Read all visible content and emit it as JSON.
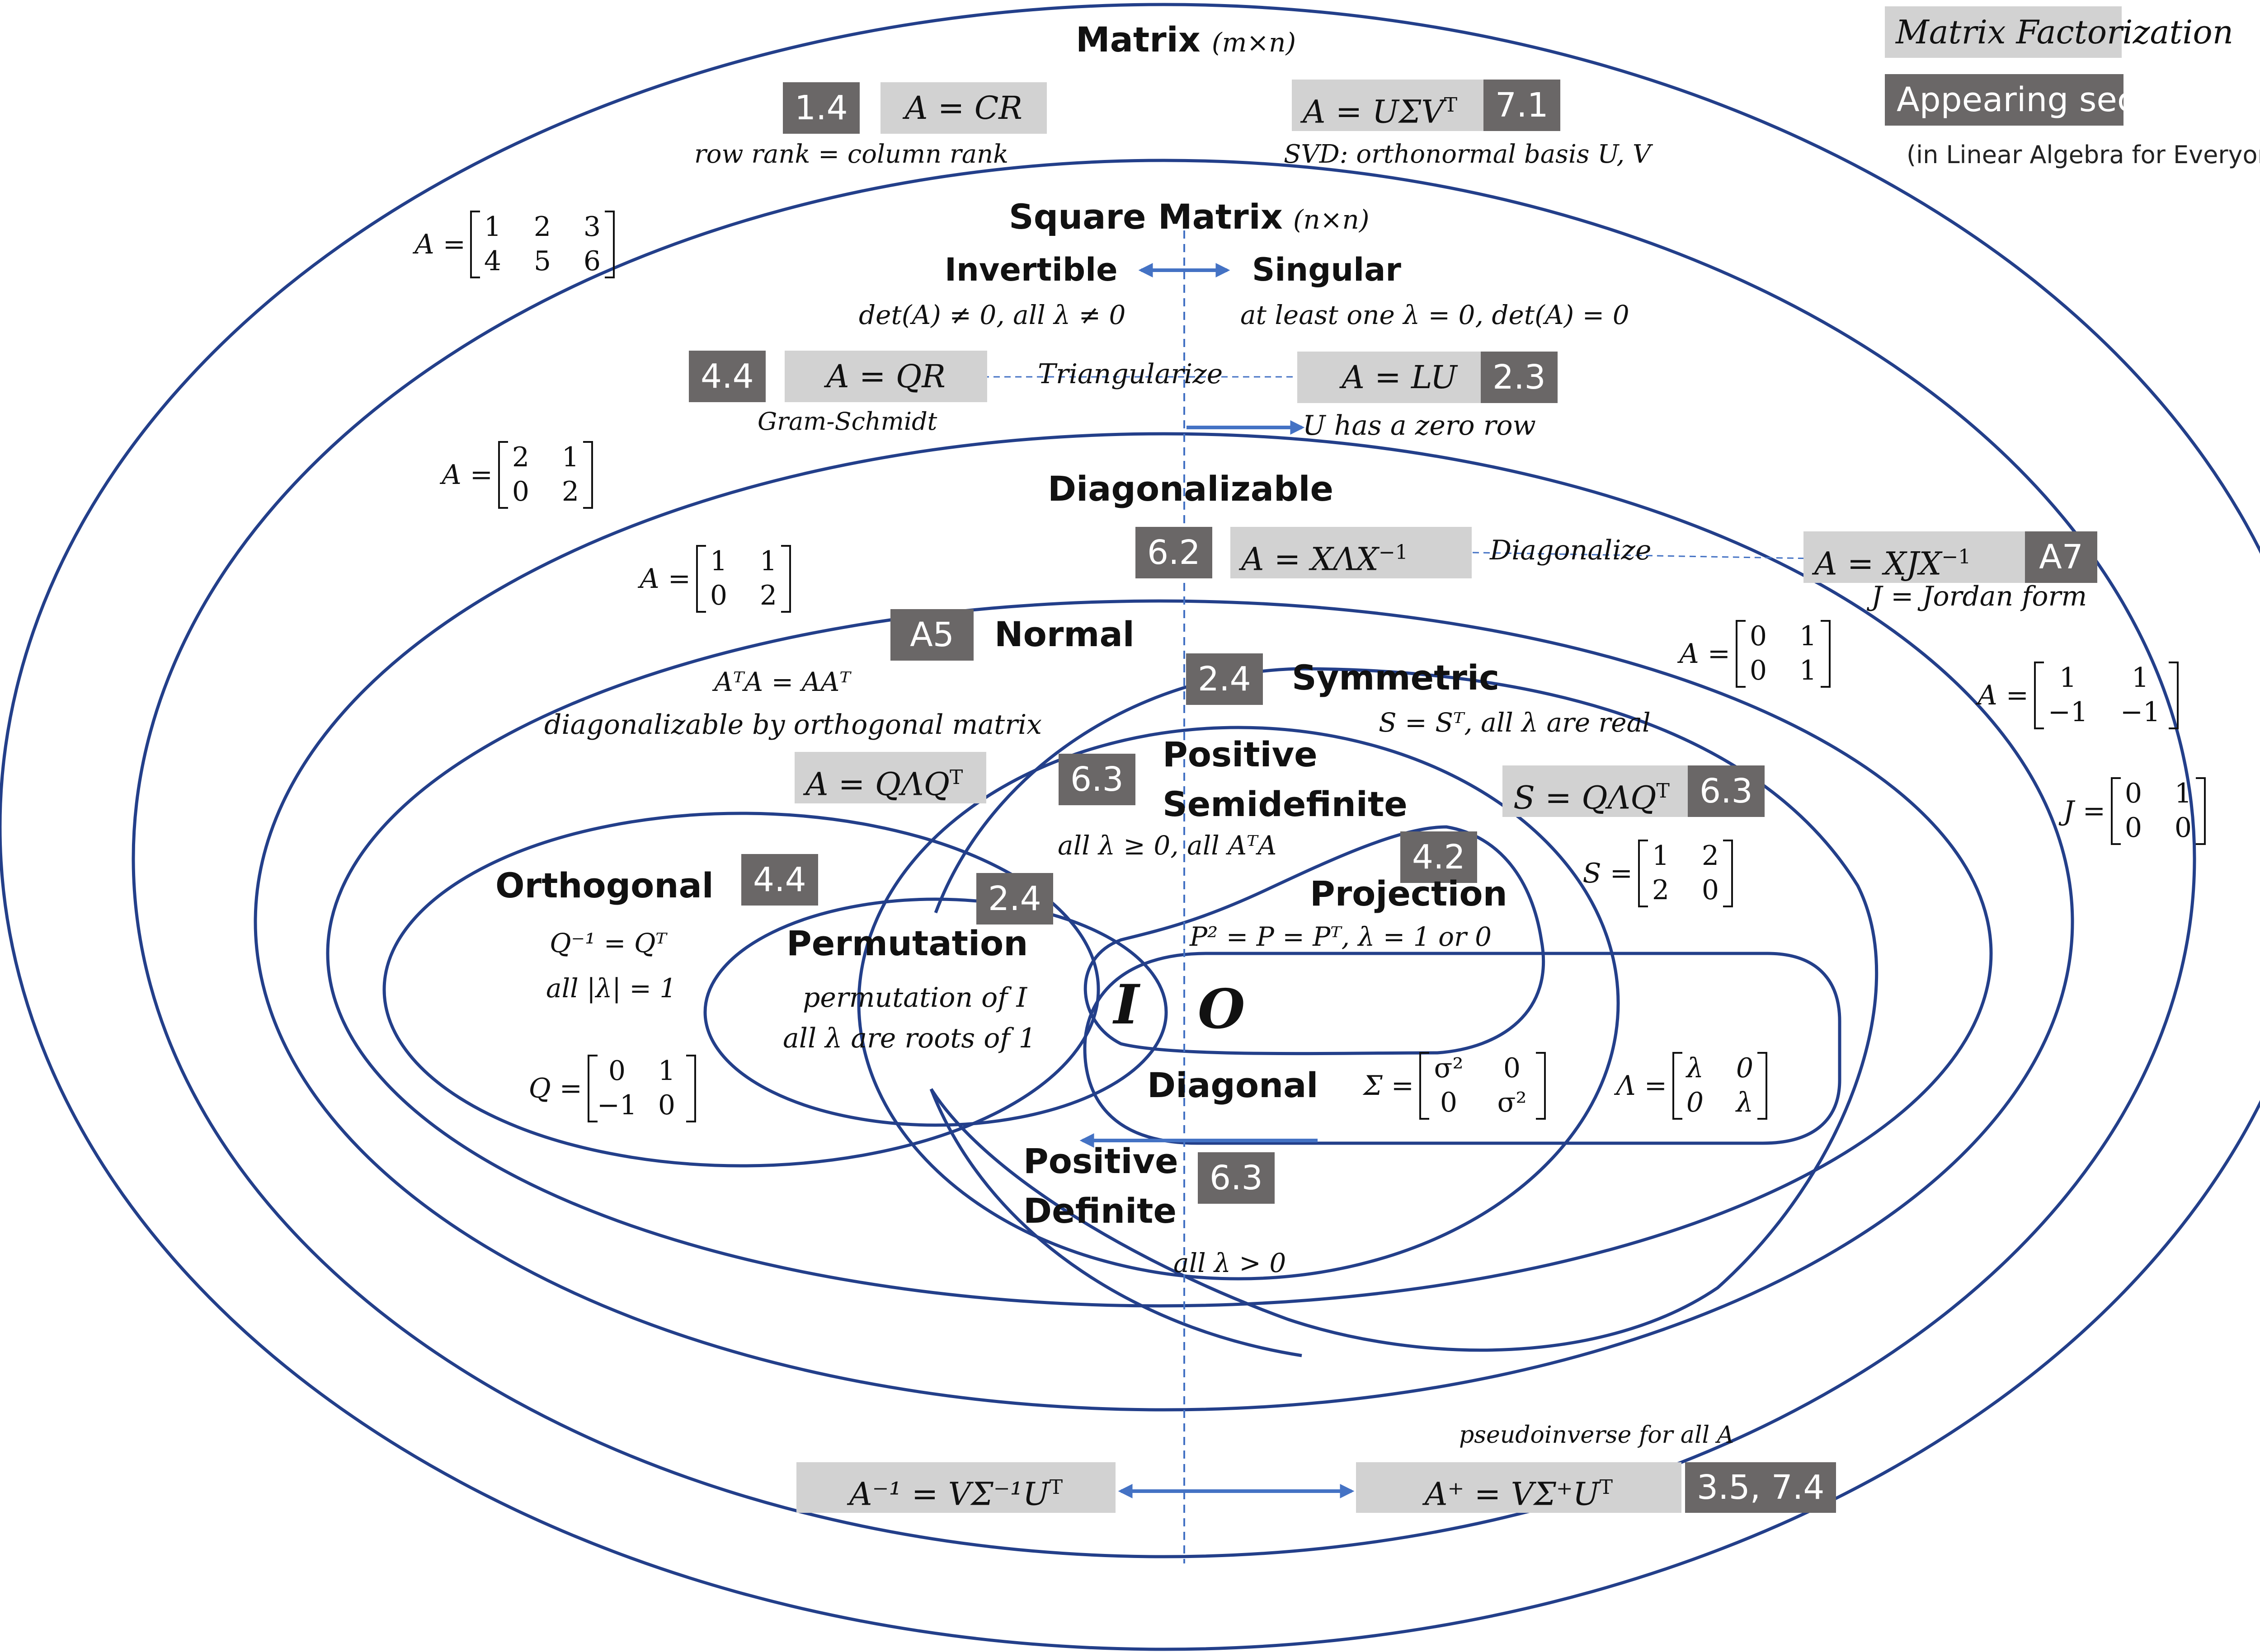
{
  "colors": {
    "line": "#233f8a",
    "arrow": "#4472c4",
    "factorization_bg": "#d2d2d2",
    "section_bg": "#6a6767",
    "section_text": "#ffffff"
  },
  "legend": {
    "factorization": "Matrix Factorization",
    "section": "Appearing section",
    "note": "(in Linear Algebra for Everyone)"
  },
  "matrix": {
    "title": "Matrix",
    "dims": "(m×n)",
    "cr": {
      "section": "1.4",
      "formula": "A = CR",
      "note": "row rank = column rank"
    },
    "svd": {
      "formula": "A = UΣV",
      "sup": "T",
      "section": "7.1",
      "note": "SVD:  orthonormal basis U, V"
    },
    "example": {
      "lhs": "A =",
      "rows": [
        [
          "1",
          "2",
          "3"
        ],
        [
          "4",
          "5",
          "6"
        ]
      ]
    }
  },
  "square": {
    "title": "Square Matrix",
    "dims": "(n×n)",
    "invertible": "Invertible",
    "singular": "Singular",
    "invertible_cond": "det(A) ≠ 0, all λ ≠ 0",
    "singular_cond": "at least one λ = 0, det(A)  =  0",
    "qr": {
      "section": "4.4",
      "formula": "A = QR",
      "note": "Gram-Schmidt"
    },
    "triangularize": "Triangularize",
    "lu": {
      "formula": "A = LU",
      "section": "2.3",
      "note": "U has a zero row"
    },
    "example": {
      "lhs": "A =",
      "rows": [
        [
          "2",
          "1"
        ],
        [
          "0",
          "2"
        ]
      ]
    }
  },
  "diagonalizable": {
    "title": "Diagonalizable",
    "xlx": {
      "section": "6.2",
      "formula": "A = XΛX",
      "sup": "−1"
    },
    "diagonalize": "Diagonalize",
    "jordan": {
      "formula": "A = XJX",
      "sup": "−1",
      "section": "A7",
      "note": "J = Jordan form"
    },
    "example": {
      "lhs": "A =",
      "rows": [
        [
          "1",
          "1"
        ],
        [
          "0",
          "2"
        ]
      ]
    },
    "example2": {
      "lhs": "A =",
      "rows": [
        [
          "0",
          "1"
        ],
        [
          "0",
          "1"
        ]
      ]
    },
    "example3": {
      "lhs": "A =",
      "rows": [
        [
          "1",
          "1"
        ],
        [
          "−1",
          "−1"
        ]
      ]
    },
    "example4": {
      "lhs": "J =",
      "rows": [
        [
          "0",
          "1"
        ],
        [
          "0",
          "0"
        ]
      ]
    }
  },
  "normal": {
    "section": "A5",
    "title": "Normal",
    "cond": "AᵀA = AAᵀ",
    "note": "diagonalizable by orthogonal matrix",
    "formula": "A = QΛQ",
    "sup": "T"
  },
  "symmetric": {
    "section": "2.4",
    "title": "Symmetric",
    "cond": "S = Sᵀ, all λ are real",
    "formula": "S = QΛQ",
    "sup": "T",
    "formula_section": "6.3",
    "example": {
      "lhs": "S =",
      "rows": [
        [
          "1",
          "2"
        ],
        [
          "2",
          "0"
        ]
      ]
    }
  },
  "psd": {
    "section": "6.3",
    "title_line1": "Positive",
    "title_line2": "Semidefinite",
    "cond": "all λ ≥ 0, all AᵀA"
  },
  "projection": {
    "section": "4.2",
    "title": "Projection",
    "cond": "P² = P = Pᵀ, λ = 1 or 0"
  },
  "orthogonal": {
    "title": "Orthogonal",
    "section": "4.4",
    "cond1": "Q⁻¹ = Qᵀ",
    "cond2": "all  |λ| = 1",
    "example": {
      "lhs": "Q =",
      "rows": [
        [
          "0",
          "1"
        ],
        [
          "−1",
          "0"
        ]
      ]
    }
  },
  "permutation": {
    "section": "2.4",
    "title": "Permutation",
    "cond1": "permutation of I",
    "cond2": "all  λ are roots of 1"
  },
  "identity": "I",
  "zero": "O",
  "diagonal": {
    "title": "Diagonal",
    "sigma": {
      "lhs": "Σ =",
      "rows": [
        [
          "σ²",
          "0"
        ],
        [
          "0",
          "σ²"
        ]
      ]
    },
    "lambda": {
      "lhs": "Λ =",
      "rows": [
        [
          "λ",
          "0"
        ],
        [
          "0",
          "λ"
        ]
      ]
    }
  },
  "pd": {
    "title_line1": "Positive",
    "title_line2": "Definite",
    "section": "6.3",
    "cond": "all λ > 0"
  },
  "bottom": {
    "inverse": {
      "formula": "A⁻¹ = VΣ⁻¹U",
      "sup": "T"
    },
    "pseudo": {
      "formula": "A⁺ = VΣ⁺U",
      "sup": "T",
      "section": "3.5, 7.4",
      "note": "pseudoinverse for all A"
    }
  }
}
